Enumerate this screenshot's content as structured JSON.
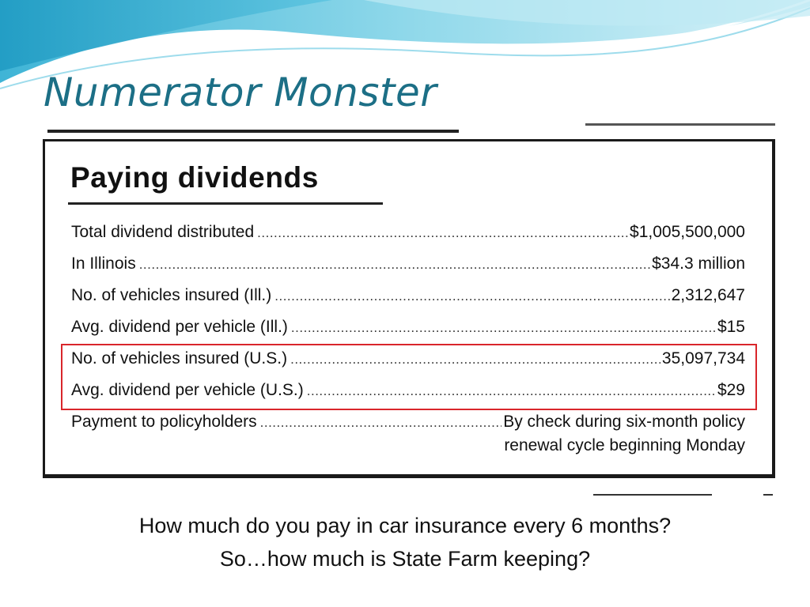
{
  "slide": {
    "title": "Numerator Monster",
    "question_line_1": "How much do you pay in car insurance every 6 months?",
    "question_line_2": "So…how much is State Farm keeping?"
  },
  "clipping": {
    "heading": "Paying dividends",
    "rows": [
      {
        "label": "Total dividend distributed",
        "value": "$1,005,500,000"
      },
      {
        "label": "In Illinois",
        "value": "$34.3 million"
      },
      {
        "label": "No. of vehicles insured (Ill.)",
        "value": "2,312,647"
      },
      {
        "label": "Avg. dividend per vehicle (Ill.)",
        "value": "$15"
      },
      {
        "label": "No. of vehicles insured (U.S.)",
        "value": "35,097,734"
      },
      {
        "label": "Avg. dividend per vehicle (U.S.)",
        "value": "$29"
      }
    ],
    "payment": {
      "label": "Payment to policyholders",
      "value_line_1": "By check during six-month policy",
      "value_line_2": "renewal cycle beginning Monday"
    }
  },
  "colors": {
    "title": "#1c6f86",
    "highlight_box": "#d9262b",
    "wave_light": "#cdeef6",
    "wave_mid": "#7fd0e6",
    "wave_dark": "#2aa6c9"
  },
  "leader_dots": "................................................................................................................................................"
}
